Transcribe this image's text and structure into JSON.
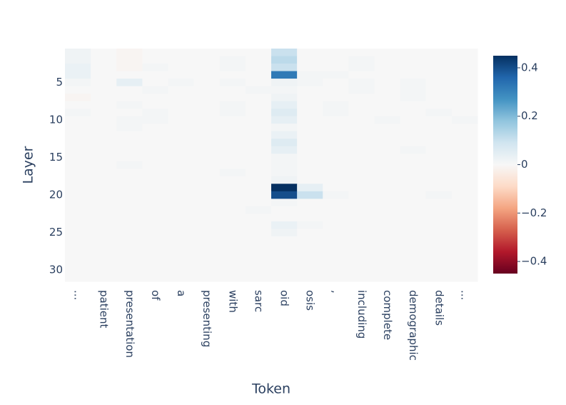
{
  "chart_data": {
    "type": "heatmap",
    "x_label": "Token",
    "y_label": "Layer",
    "categories": [
      "...",
      "patient",
      "presentation",
      "of",
      "a",
      "presenting",
      "with",
      "sarc",
      "oid",
      "osis",
      ",",
      "including",
      "complete",
      "demographic",
      "details",
      "..."
    ],
    "y": [
      1,
      2,
      3,
      4,
      5,
      6,
      7,
      8,
      9,
      10,
      11,
      12,
      13,
      14,
      15,
      16,
      17,
      18,
      19,
      20,
      21,
      22,
      23,
      24,
      25,
      26,
      27,
      28,
      29,
      30,
      31
    ],
    "ylim": [
      31.5,
      0.5
    ],
    "yticks": [
      5,
      10,
      15,
      20,
      25,
      30
    ],
    "zlim": [
      -0.45,
      0.45
    ],
    "zticks": [
      {
        "value": -0.4,
        "label": "−0.4"
      },
      {
        "value": -0.2,
        "label": "−0.2"
      },
      0,
      0.2,
      0.4
    ],
    "colorscale": [
      "#67001f",
      "#b2182b",
      "#d6604d",
      "#f4a582",
      "#fddbc7",
      "#f7f7f7",
      "#d1e5f0",
      "#92c5de",
      "#4393c3",
      "#2166ac",
      "#053061"
    ],
    "z": [
      [
        0.02,
        0,
        -0.01,
        0,
        0,
        0,
        0,
        0,
        0.1,
        0,
        0,
        0,
        0,
        0,
        0,
        0
      ],
      [
        0.02,
        0,
        -0.01,
        0,
        0,
        0,
        0.01,
        0,
        0.12,
        0,
        0,
        0.01,
        0,
        0,
        0,
        0
      ],
      [
        0.03,
        0,
        -0.01,
        0.01,
        0,
        0,
        0.01,
        0,
        0.1,
        0,
        0,
        0.01,
        0,
        0,
        0,
        0
      ],
      [
        0.03,
        0,
        0,
        0,
        0,
        0,
        0,
        0,
        0.32,
        0.01,
        0.01,
        0,
        0,
        0,
        0,
        0
      ],
      [
        0.01,
        0,
        0.04,
        0,
        0.01,
        0,
        0.01,
        0,
        0.02,
        0.01,
        0,
        0.01,
        0,
        0.01,
        0,
        0
      ],
      [
        0,
        0,
        0,
        0.01,
        0,
        0,
        0,
        0.01,
        0.01,
        0,
        0,
        0.01,
        0,
        0.01,
        0,
        0
      ],
      [
        -0.01,
        0,
        0,
        0,
        0,
        0,
        0,
        0,
        0.02,
        0,
        0,
        0,
        0,
        0.01,
        0,
        0
      ],
      [
        0,
        0,
        0.01,
        0,
        0,
        0,
        0.01,
        0,
        0.04,
        0,
        0.01,
        0,
        0,
        0,
        0,
        0
      ],
      [
        0.01,
        0,
        0,
        0.01,
        0,
        0,
        0.01,
        0,
        0.06,
        0,
        0.01,
        0,
        0,
        0,
        0.01,
        0
      ],
      [
        0,
        0,
        0.01,
        0.01,
        0,
        0,
        0,
        0,
        0.04,
        0,
        0,
        0,
        0.01,
        0,
        0,
        0.01
      ],
      [
        0,
        0,
        0.01,
        0,
        0,
        0,
        0,
        0,
        0.01,
        0,
        0,
        0,
        0,
        0,
        0,
        0
      ],
      [
        0,
        0,
        0,
        0,
        0,
        0,
        0,
        0,
        0.03,
        0,
        0,
        0,
        0,
        0,
        0,
        0
      ],
      [
        0,
        0,
        0,
        0,
        0,
        0,
        0,
        0,
        0.06,
        0,
        0,
        0,
        0,
        0,
        0,
        0
      ],
      [
        0,
        0,
        0,
        0,
        0,
        0,
        0,
        0,
        0.04,
        0,
        0,
        0,
        0,
        0.01,
        0,
        0
      ],
      [
        0,
        0,
        0,
        0,
        0,
        0,
        0,
        0,
        0.01,
        0,
        0,
        0,
        0,
        0,
        0,
        0
      ],
      [
        0,
        0,
        0.01,
        0,
        0,
        0,
        0,
        0,
        0.01,
        0,
        0,
        0,
        0,
        0,
        0,
        0
      ],
      [
        0,
        0,
        0,
        0,
        0,
        0,
        0.01,
        0,
        0.01,
        0,
        0,
        0,
        0,
        0,
        0,
        0
      ],
      [
        0,
        0,
        0,
        0,
        0,
        0,
        0,
        0,
        0.02,
        0,
        0,
        0,
        0,
        0,
        0,
        0
      ],
      [
        0,
        0,
        0,
        0,
        0,
        0,
        0,
        0,
        0.45,
        0.04,
        0,
        0,
        0,
        0,
        0,
        0
      ],
      [
        0,
        0,
        0,
        0,
        0,
        0,
        0,
        0,
        0.4,
        0.1,
        0.01,
        0,
        0,
        0,
        0.01,
        0
      ],
      [
        0,
        0,
        0,
        0,
        0,
        0,
        0,
        0,
        0.01,
        0,
        0,
        0,
        0,
        0,
        0,
        0
      ],
      [
        0,
        0,
        0,
        0,
        0,
        0,
        0,
        0.01,
        0,
        0,
        0,
        0,
        0,
        0,
        0,
        0
      ],
      [
        0,
        0,
        0,
        0,
        0,
        0,
        0,
        0,
        0,
        0,
        0,
        0,
        0,
        0,
        0,
        0
      ],
      [
        0,
        0,
        0,
        0,
        0,
        0,
        0,
        0,
        0.03,
        0.01,
        0,
        0,
        0,
        0,
        0,
        0
      ],
      [
        0,
        0,
        0,
        0,
        0,
        0,
        0,
        0,
        0.02,
        0,
        0,
        0,
        0,
        0,
        0,
        0
      ],
      [
        0,
        0,
        0,
        0,
        0,
        0,
        0,
        0,
        0,
        0,
        0,
        0,
        0,
        0,
        0,
        0
      ],
      [
        0,
        0,
        0,
        0,
        0,
        0,
        0,
        0,
        0,
        0,
        0,
        0,
        0,
        0,
        0,
        0
      ],
      [
        0,
        0,
        0,
        0,
        0,
        0,
        0,
        0,
        0,
        0,
        0,
        0,
        0,
        0,
        0,
        0
      ],
      [
        0,
        0,
        0,
        0,
        0,
        0,
        0,
        0,
        0,
        0,
        0,
        0,
        0,
        0,
        0,
        0
      ],
      [
        0,
        0,
        0,
        0,
        0,
        0,
        0,
        0,
        0,
        0,
        0,
        0,
        0,
        0,
        0,
        0
      ],
      [
        0,
        0,
        0,
        0,
        0,
        0,
        0,
        0,
        0,
        0,
        0,
        0,
        0,
        0,
        0,
        0
      ]
    ]
  }
}
